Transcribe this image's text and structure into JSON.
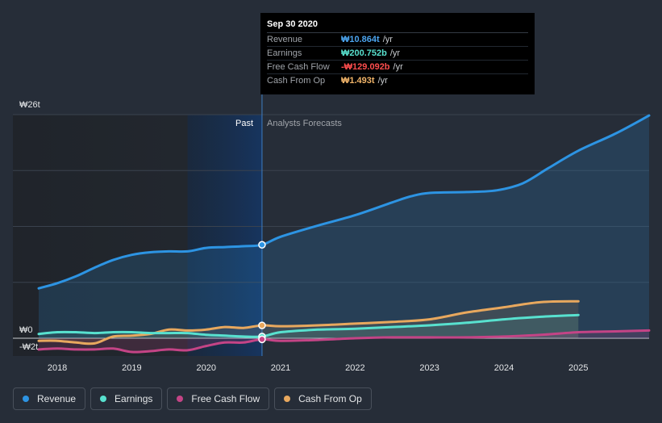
{
  "tooltip": {
    "date": "Sep 30 2020",
    "rows": [
      {
        "label": "Revenue",
        "value": "₩10.864t",
        "unit": "/yr",
        "color": "#4ca5ef"
      },
      {
        "label": "Earnings",
        "value": "₩200.752b",
        "unit": "/yr",
        "color": "#58e1cf"
      },
      {
        "label": "Free Cash Flow",
        "value": "-₩129.092b",
        "unit": "/yr",
        "color": "#ff4d4d"
      },
      {
        "label": "Cash From Op",
        "value": "₩1.493t",
        "unit": "/yr",
        "color": "#f2b56a"
      }
    ]
  },
  "labels": {
    "past": "Past",
    "forecast": "Analysts Forecasts"
  },
  "legend": [
    {
      "label": "Revenue",
      "color": "#2d94e3"
    },
    {
      "label": "Earnings",
      "color": "#58e1cf"
    },
    {
      "label": "Free Cash Flow",
      "color": "#c44486"
    },
    {
      "label": "Cash From Op",
      "color": "#e8a85e"
    }
  ],
  "chart_data": {
    "type": "line",
    "title": "",
    "currency": "₩",
    "ylim": [
      -2,
      26
    ],
    "y_ticks": [
      {
        "value": 26,
        "label": "₩26t"
      },
      {
        "value": 0,
        "label": "₩0"
      },
      {
        "value": -2,
        "label": "-₩2t"
      }
    ],
    "x_range": [
      2017.75,
      2025.95
    ],
    "x_ticks": [
      {
        "value": 2018,
        "label": "2018"
      },
      {
        "value": 2019,
        "label": "2019"
      },
      {
        "value": 2020,
        "label": "2020"
      },
      {
        "value": 2021,
        "label": "2021"
      },
      {
        "value": 2022,
        "label": "2022"
      },
      {
        "value": 2023,
        "label": "2023"
      },
      {
        "value": 2024,
        "label": "2024"
      },
      {
        "value": 2025,
        "label": "2025"
      }
    ],
    "divider_x": 2020.75,
    "highlight_start_x": 2019.75,
    "series": [
      {
        "name": "Revenue",
        "unit": "trillion KRW",
        "x": [
          2017.75,
          2018.0,
          2018.25,
          2018.5,
          2018.75,
          2019.0,
          2019.25,
          2019.5,
          2019.75,
          2020.0,
          2020.25,
          2020.5,
          2020.75,
          2021.0,
          2021.5,
          2022.0,
          2022.5,
          2022.75,
          2023.0,
          2023.5,
          2023.9,
          2024.25,
          2024.6,
          2025.0,
          2025.5,
          2025.95
        ],
        "values": [
          5.8,
          6.4,
          7.2,
          8.2,
          9.1,
          9.7,
          10.0,
          10.1,
          10.1,
          10.5,
          10.6,
          10.7,
          10.864,
          11.8,
          13.1,
          14.3,
          15.8,
          16.5,
          16.9,
          17.0,
          17.2,
          18.0,
          19.8,
          21.8,
          23.8,
          25.9
        ]
      },
      {
        "name": "Earnings",
        "unit": "trillion KRW",
        "x": [
          2017.75,
          2018.0,
          2018.25,
          2018.5,
          2018.75,
          2019.0,
          2019.25,
          2019.5,
          2019.75,
          2020.0,
          2020.25,
          2020.5,
          2020.75,
          2021.0,
          2021.5,
          2022.0,
          2022.5,
          2023.0,
          2023.5,
          2024.0,
          2024.5,
          2025.0
        ],
        "values": [
          0.5,
          0.7,
          0.7,
          0.6,
          0.7,
          0.7,
          0.6,
          0.6,
          0.6,
          0.4,
          0.3,
          0.2,
          0.2,
          0.7,
          1.0,
          1.1,
          1.3,
          1.5,
          1.8,
          2.2,
          2.5,
          2.7
        ]
      },
      {
        "name": "Free Cash Flow",
        "unit": "trillion KRW",
        "x": [
          2017.75,
          2018.0,
          2018.25,
          2018.5,
          2018.75,
          2019.0,
          2019.25,
          2019.5,
          2019.75,
          2020.0,
          2020.25,
          2020.5,
          2020.75,
          2021.0,
          2021.5,
          2022.0,
          2022.5,
          2023.0,
          2023.5,
          2024.0,
          2024.5,
          2025.0,
          2025.5,
          2025.95
        ],
        "values": [
          -1.3,
          -1.2,
          -1.3,
          -1.3,
          -1.2,
          -1.6,
          -1.5,
          -1.3,
          -1.4,
          -0.9,
          -0.5,
          -0.5,
          -0.129,
          -0.3,
          -0.2,
          0.0,
          0.1,
          0.1,
          0.1,
          0.2,
          0.4,
          0.7,
          0.8,
          0.9
        ]
      },
      {
        "name": "Cash From Op",
        "unit": "trillion KRW",
        "x": [
          2017.75,
          2018.0,
          2018.25,
          2018.5,
          2018.75,
          2019.0,
          2019.25,
          2019.5,
          2019.75,
          2020.0,
          2020.25,
          2020.5,
          2020.75,
          2021.0,
          2021.5,
          2022.0,
          2022.5,
          2023.0,
          2023.5,
          2024.0,
          2024.5,
          2025.0
        ],
        "values": [
          -0.3,
          -0.3,
          -0.5,
          -0.6,
          0.2,
          0.3,
          0.5,
          1.0,
          0.9,
          1.0,
          1.3,
          1.2,
          1.493,
          1.4,
          1.5,
          1.7,
          1.9,
          2.2,
          3.0,
          3.6,
          4.2,
          4.3
        ]
      }
    ]
  }
}
